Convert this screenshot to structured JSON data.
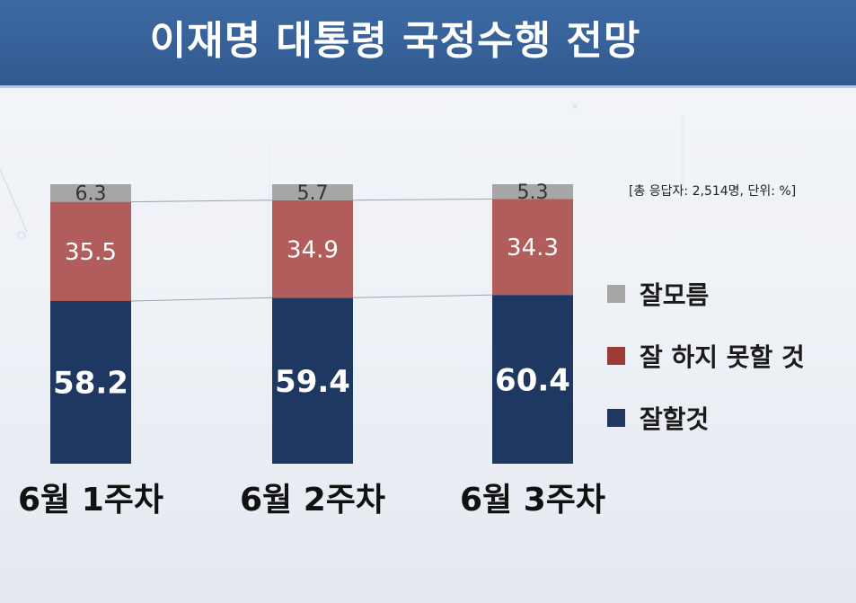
{
  "header": {
    "title": "이재명 대통령 국정수행 전망"
  },
  "note": "[총 응답자: 2,514명, 단위: %]",
  "colors": {
    "header_bg": "#35609a",
    "dont_know": "#a6a6a6",
    "bad": "#b05d5c",
    "good": "#1e3862"
  },
  "chart_data": {
    "type": "bar",
    "stacked": true,
    "categories": [
      "6월 1주차",
      "6월 2주차",
      "6월 3주차"
    ],
    "series": [
      {
        "name": "잘할것",
        "values": [
          58.2,
          59.4,
          60.4
        ],
        "color": "#1e3862"
      },
      {
        "name": "잘 하지 못할 것",
        "values": [
          35.5,
          34.9,
          34.3
        ],
        "color": "#b05d5c"
      },
      {
        "name": "잘모름",
        "values": [
          6.3,
          5.7,
          5.3
        ],
        "color": "#a6a6a6"
      }
    ],
    "ylim": [
      0,
      100
    ],
    "grid": false,
    "legend": "right",
    "data_labels": true,
    "connector_lines": true
  },
  "legend": [
    {
      "label": "잘모름",
      "color": "#a6a6a6"
    },
    {
      "label": "잘 하지 못할 것",
      "color": "#9c3a38"
    },
    {
      "label": "잘할것",
      "color": "#1e3862"
    }
  ]
}
